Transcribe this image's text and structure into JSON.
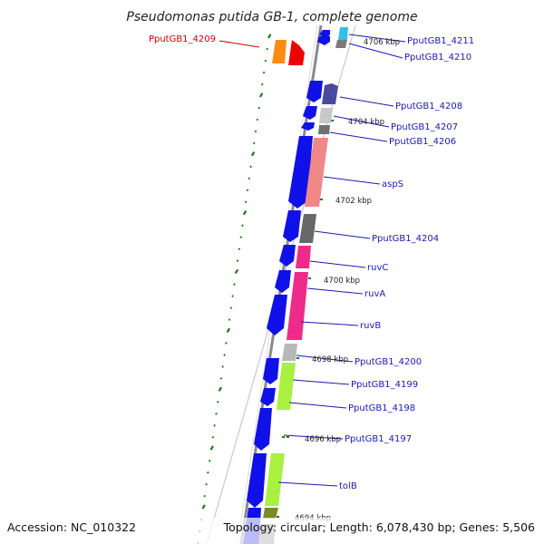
{
  "title": "Pseudomonas putida GB-1, complete genome",
  "accession_label": "Accession: NC_010322",
  "stats_label": "Topology: circular; Length: 6,078,430 bp; Genes: 5,506",
  "kbp_marks": [
    "4706 kbp",
    "4704 kbp",
    "4702 kbp",
    "4700 kbp",
    "4698 kbp",
    "4696 kbp",
    "4694 kbp"
  ],
  "genes": [
    {
      "id": "PputGB1_4209",
      "highlight": true
    },
    {
      "id": "PputGB1_4211"
    },
    {
      "id": "PputGB1_4210"
    },
    {
      "id": "PputGB1_4208"
    },
    {
      "id": "PputGB1_4207"
    },
    {
      "id": "PputGB1_4206"
    },
    {
      "id": "aspS"
    },
    {
      "id": "PputGB1_4204"
    },
    {
      "id": "ruvC"
    },
    {
      "id": "ruvA"
    },
    {
      "id": "ruvB"
    },
    {
      "id": "PputGB1_4200"
    },
    {
      "id": "PputGB1_4199"
    },
    {
      "id": "PputGB1_4198"
    },
    {
      "id": "PputGB1_4197"
    },
    {
      "id": "tolB"
    }
  ],
  "colors": {
    "backbone": "#8a8a8a",
    "cds": "#1010e8",
    "dots": "#1a7a1a",
    "highlight": "#d00000",
    "label": "#1a1ab0"
  }
}
